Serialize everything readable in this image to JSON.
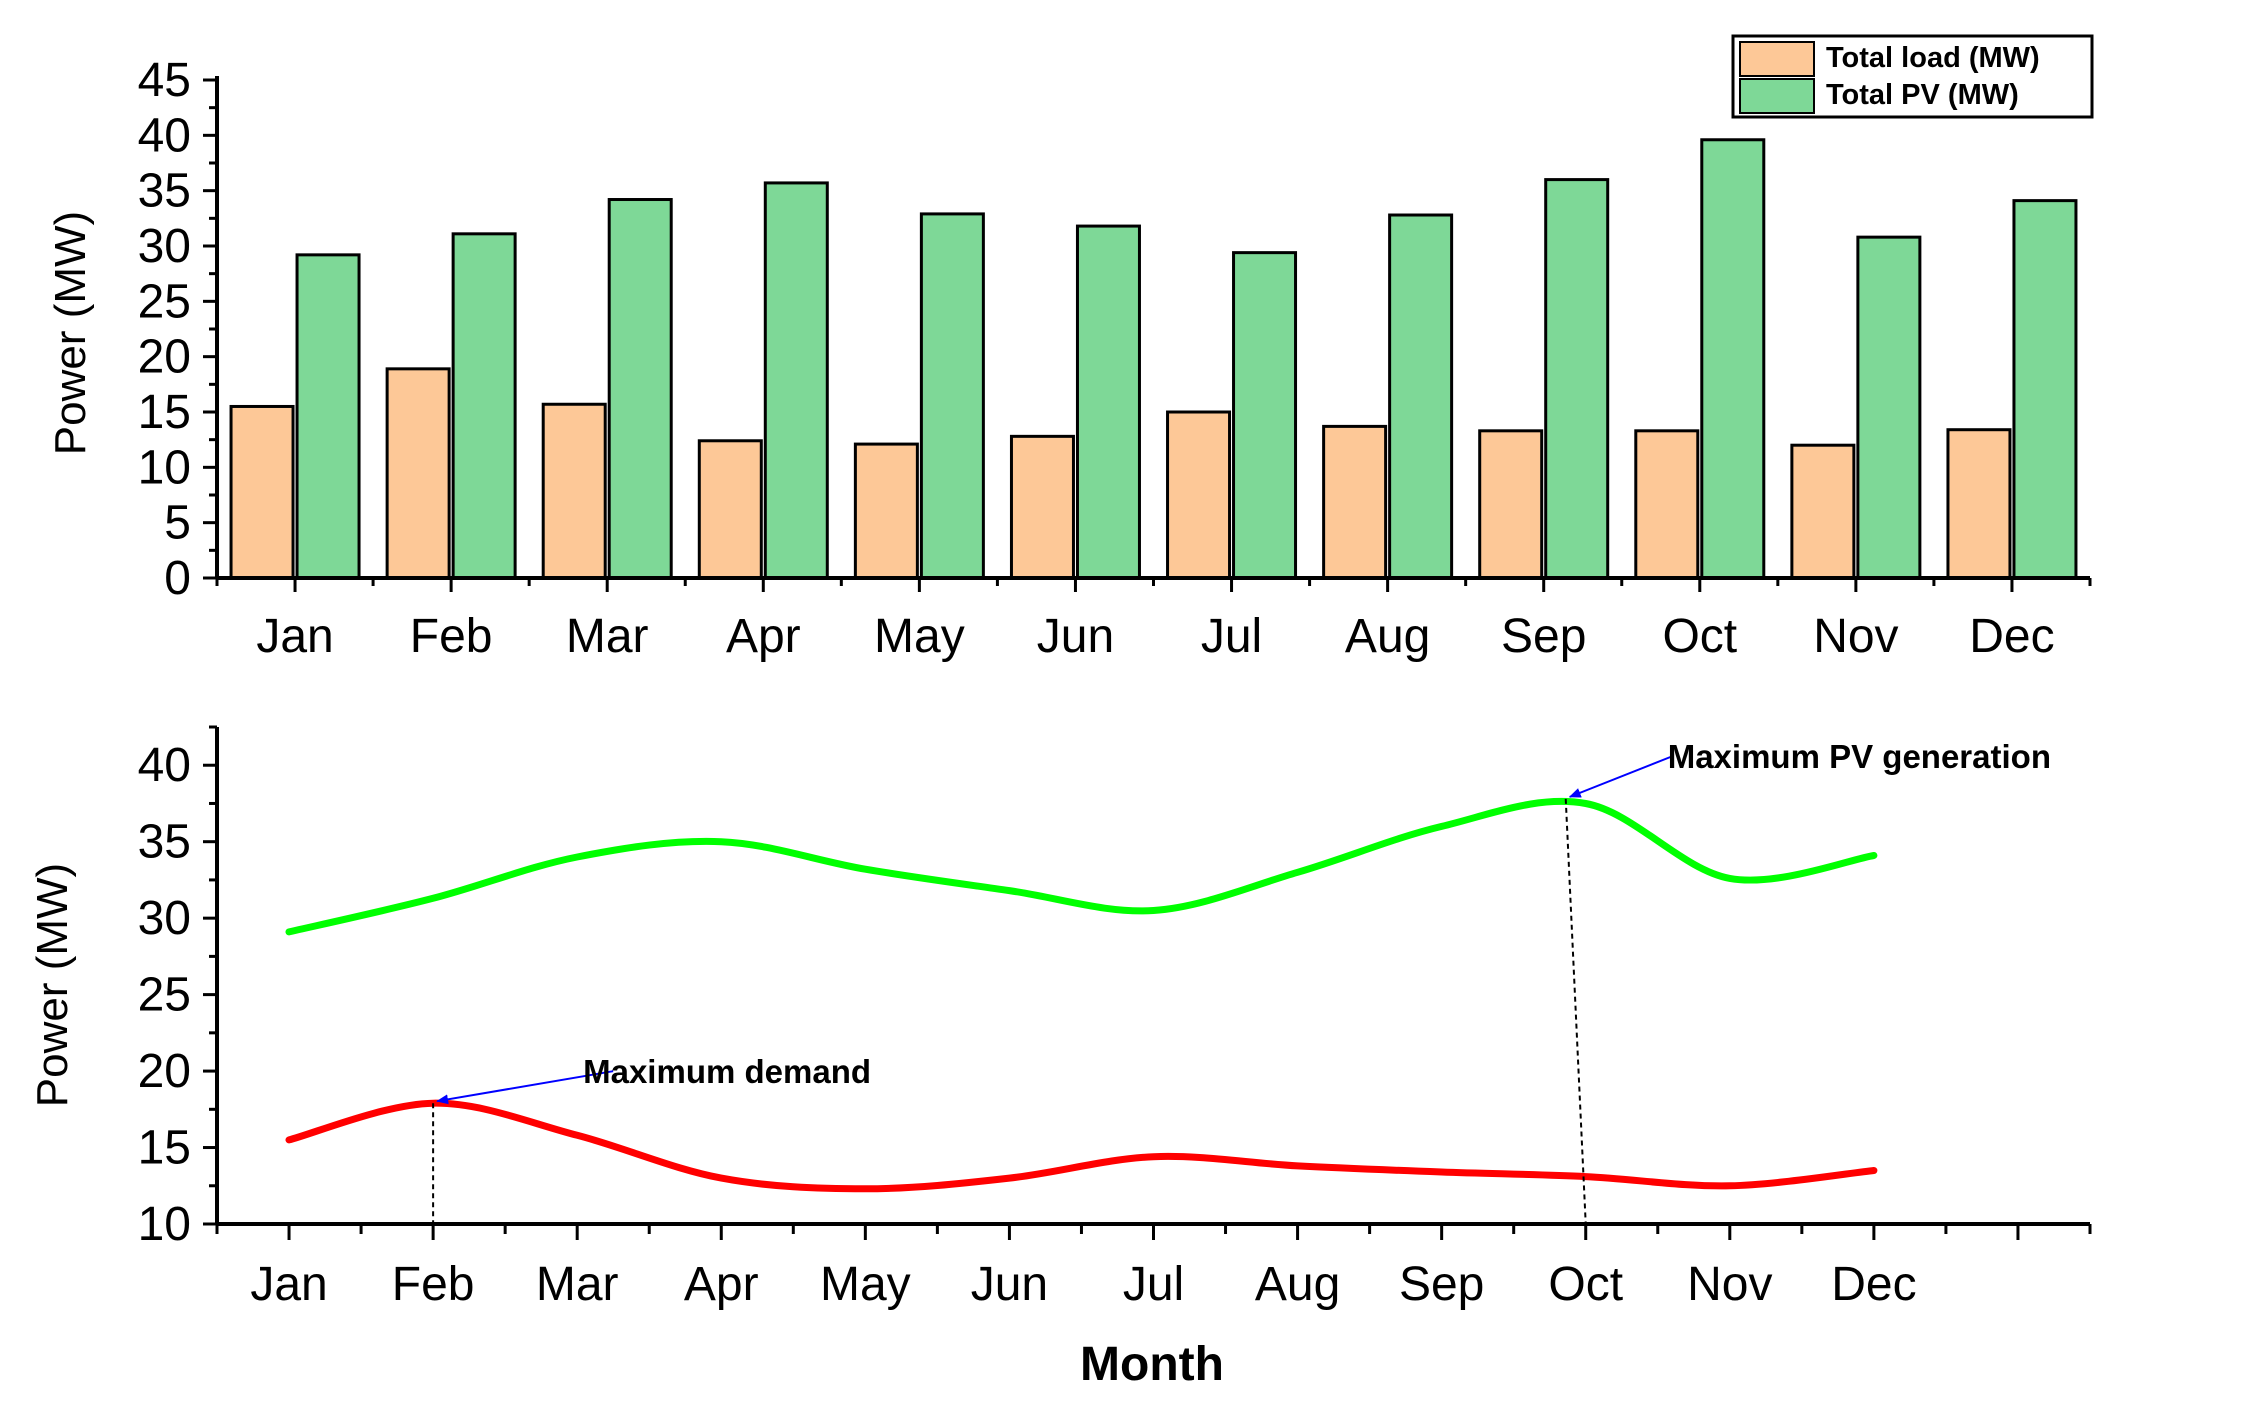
{
  "chart_data": [
    {
      "type": "bar",
      "categories": [
        "Jan",
        "Feb",
        "Mar",
        "Apr",
        "May",
        "Jun",
        "Jul",
        "Aug",
        "Sep",
        "Oct",
        "Nov",
        "Dec"
      ],
      "series": [
        {
          "name": "Total load (MW)",
          "color": "#FDC897",
          "values": [
            15.5,
            18.9,
            15.7,
            12.4,
            12.1,
            12.8,
            15.0,
            13.7,
            13.3,
            13.3,
            12.0,
            13.4
          ]
        },
        {
          "name": "Total PV (MW)",
          "color": "#7ED897",
          "values": [
            29.2,
            31.1,
            34.2,
            35.7,
            32.9,
            31.8,
            29.4,
            32.8,
            36.0,
            39.6,
            30.8,
            34.1
          ]
        }
      ],
      "xlabel": "",
      "ylabel": "Power (MW)",
      "ylim": [
        0,
        45
      ],
      "yticks": [
        0,
        5,
        10,
        15,
        20,
        25,
        30,
        35,
        40,
        45
      ],
      "legend": "top-right"
    },
    {
      "type": "line",
      "categories": [
        "Jan",
        "Feb",
        "Mar",
        "Apr",
        "May",
        "Jun",
        "Jul",
        "Aug",
        "Sep",
        "Oct",
        "Nov",
        "Dec"
      ],
      "series": [
        {
          "name": "Total PV",
          "color": "#00FF00",
          "values": [
            29.1,
            31.3,
            34.0,
            35.0,
            33.2,
            31.8,
            30.5,
            33.0,
            36.0,
            37.5,
            32.6,
            34.1
          ]
        },
        {
          "name": "Total load",
          "color": "#FF0000",
          "values": [
            15.5,
            17.9,
            15.8,
            13.0,
            12.3,
            13.0,
            14.4,
            13.8,
            13.4,
            13.1,
            12.5,
            13.5
          ]
        }
      ],
      "xlabel": "Month",
      "ylabel": "Power (MW)",
      "ylim": [
        10,
        42.5
      ],
      "yticks": [
        10,
        15,
        20,
        25,
        30,
        35,
        40
      ],
      "annotations": [
        {
          "text": "Maximum demand",
          "month": "Feb",
          "value": 17.9
        },
        {
          "text": "Maximum PV generation",
          "month": "Oct",
          "value": 37.8
        }
      ]
    }
  ]
}
